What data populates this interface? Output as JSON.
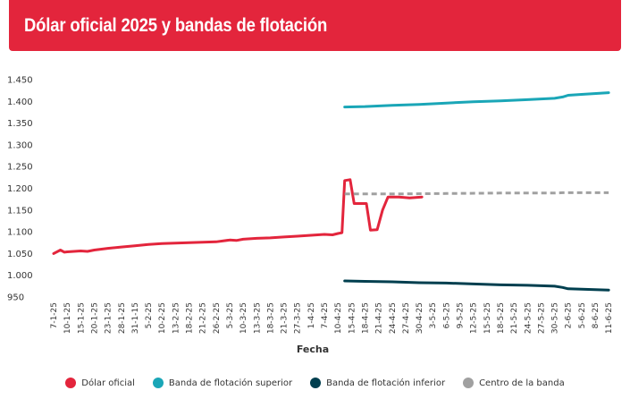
{
  "header": {
    "title": "Dólar oficial 2025 y bandas de flotación"
  },
  "chart_data": {
    "type": "line",
    "title": "Dólar oficial 2025 y bandas de flotación",
    "xlabel": "Fecha",
    "ylabel": "",
    "ylim": [
      950,
      1450
    ],
    "yticks": [
      950,
      1000,
      1050,
      1100,
      1150,
      1200,
      1250,
      1300,
      1350,
      1400,
      1450
    ],
    "ytick_labels": [
      "950",
      "1.000",
      "1.050",
      "1.100",
      "1.150",
      "1.200",
      "1.250",
      "1.300",
      "1.350",
      "1.400",
      "1.450"
    ],
    "categories": [
      "7-1-25",
      "10-1-25",
      "15-1-25",
      "20-1-25",
      "23-1-25",
      "28-1-25",
      "31-1-15",
      "5-2-25",
      "10-2-25",
      "13-2-25",
      "18-2-25",
      "21-2-25",
      "26-2-25",
      "5-3-25",
      "10-3-25",
      "13-3-25",
      "18-3-25",
      "21-3-25",
      "27-3-25",
      "1-4-25",
      "7-4-25",
      "10-4-25",
      "15-4-25",
      "18-4-25",
      "21-4-25",
      "24-4-25",
      "27-4-25",
      "30-4-25",
      "3-5-25",
      "6-5-25",
      "9-5-25",
      "12-5-25",
      "15-5-25",
      "18-5-25",
      "21-5-25",
      "24-5-25",
      "27-5-25",
      "30-5-25",
      "2-6-25",
      "5-6-25",
      "8-6-25",
      "11-6-25"
    ],
    "grid": false,
    "legend_position": "bottom",
    "series": [
      {
        "name": "Dólar oficial",
        "color": "#E3253C",
        "points": [
          [
            0,
            1050
          ],
          [
            0.5,
            1058
          ],
          [
            0.8,
            1053
          ],
          [
            1,
            1054
          ],
          [
            2,
            1056
          ],
          [
            2.5,
            1055
          ],
          [
            3,
            1058
          ],
          [
            4,
            1062
          ],
          [
            5,
            1065
          ],
          [
            6,
            1068
          ],
          [
            7,
            1071
          ],
          [
            8,
            1073
          ],
          [
            9,
            1074
          ],
          [
            10,
            1075
          ],
          [
            11,
            1076
          ],
          [
            12,
            1077
          ],
          [
            13,
            1081
          ],
          [
            13.5,
            1080
          ],
          [
            14,
            1083
          ],
          [
            15,
            1085
          ],
          [
            16,
            1086
          ],
          [
            17,
            1088
          ],
          [
            18,
            1090
          ],
          [
            19,
            1092
          ],
          [
            20,
            1094
          ],
          [
            20.6,
            1093
          ],
          [
            21,
            1096
          ],
          [
            21.3,
            1098
          ],
          [
            21.5,
            1218
          ],
          [
            21.9,
            1220
          ],
          [
            22.2,
            1165
          ],
          [
            23.1,
            1165
          ],
          [
            23.4,
            1104
          ],
          [
            23.9,
            1105
          ],
          [
            24.3,
            1150
          ],
          [
            24.7,
            1180
          ],
          [
            25.5,
            1180
          ],
          [
            26.3,
            1178
          ],
          [
            27.2,
            1180
          ]
        ]
      },
      {
        "name": "Banda de flotación superior",
        "color": "#1AA6B7",
        "points": [
          [
            21.5,
            1387
          ],
          [
            23,
            1388
          ],
          [
            25,
            1391
          ],
          [
            27,
            1393
          ],
          [
            29,
            1396
          ],
          [
            31,
            1399
          ],
          [
            33,
            1401
          ],
          [
            35,
            1404
          ],
          [
            37,
            1407
          ],
          [
            37.6,
            1410
          ],
          [
            38,
            1414
          ],
          [
            39,
            1416
          ],
          [
            41,
            1420
          ]
        ]
      },
      {
        "name": "Banda de flotación inferior",
        "color": "#003F4F",
        "points": [
          [
            21.5,
            987
          ],
          [
            23,
            986
          ],
          [
            25,
            985
          ],
          [
            27,
            983
          ],
          [
            29,
            982
          ],
          [
            31,
            980
          ],
          [
            33,
            978
          ],
          [
            35,
            977
          ],
          [
            37,
            975
          ],
          [
            37.6,
            972
          ],
          [
            38,
            969
          ],
          [
            39,
            968
          ],
          [
            41,
            966
          ]
        ]
      },
      {
        "name": "Centro de la banda",
        "color": "#A0A0A0",
        "dashed": true,
        "points": [
          [
            21.5,
            1187
          ],
          [
            25,
            1187
          ],
          [
            29,
            1188
          ],
          [
            33,
            1189
          ],
          [
            37,
            1189
          ],
          [
            37.6,
            1190
          ],
          [
            41,
            1190
          ]
        ]
      }
    ]
  }
}
